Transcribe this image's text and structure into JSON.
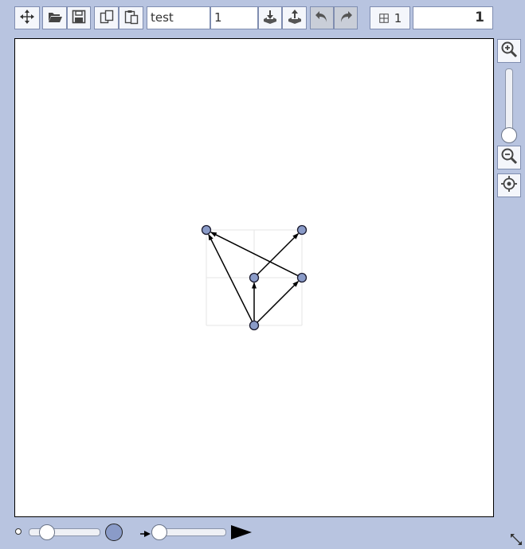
{
  "toolbar": {
    "name_field": "test",
    "index_field": "1",
    "layer_label": "1",
    "value_field": "1"
  },
  "icons": {
    "move": "move-icon",
    "open": "folder-open-icon",
    "save": "save-icon",
    "copy": "copy-icon",
    "paste": "paste-icon",
    "import": "import-icon",
    "export": "export-icon",
    "undo": "undo-icon",
    "redo": "redo-icon",
    "grid": "grid-icon",
    "zoom_in": "zoom-in-icon",
    "zoom_out": "zoom-out-icon",
    "center": "crosshair-icon",
    "resize": "resize-icon"
  },
  "sidebar": {
    "zoom_level": 0
  },
  "bottom": {
    "node_size_level": 0.25,
    "arrow_size_level": 0.2
  },
  "graph": {
    "nodes": [
      {
        "id": "a",
        "x": 0,
        "y": 2
      },
      {
        "id": "b",
        "x": 2,
        "y": 2
      },
      {
        "id": "c",
        "x": 1,
        "y": 1
      },
      {
        "id": "d",
        "x": 2,
        "y": 1
      },
      {
        "id": "e",
        "x": 1,
        "y": 0
      }
    ],
    "edges": [
      {
        "from": "e",
        "to": "a"
      },
      {
        "from": "e",
        "to": "c"
      },
      {
        "from": "e",
        "to": "d"
      },
      {
        "from": "c",
        "to": "b"
      },
      {
        "from": "d",
        "to": "a"
      }
    ]
  },
  "colors": {
    "background": "#b8c4e0",
    "node_fill": "#8a9bc8",
    "node_stroke": "#1a1a2e",
    "grid": "#e6e6e6"
  }
}
